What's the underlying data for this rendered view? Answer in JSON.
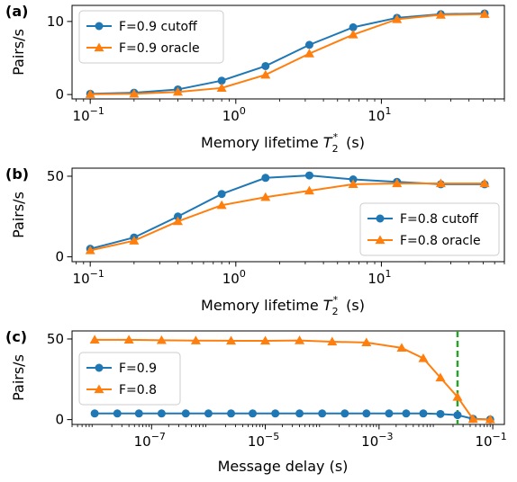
{
  "chart_data": [
    {
      "panel": "(a)",
      "type": "line",
      "xscale": "log",
      "xlabel": "Memory lifetime",
      "xlabel_math": "T2*",
      "xlabel_unit": "(s)",
      "ylabel": "Pairs/s",
      "xlim": [
        0.075,
        70
      ],
      "ylim": [
        -0.6,
        12.2
      ],
      "xticks": [
        {
          "value": 0.1,
          "label": "10",
          "exp": "−1"
        },
        {
          "value": 1,
          "label": "10",
          "exp": "0"
        },
        {
          "value": 10,
          "label": "10",
          "exp": "1"
        }
      ],
      "yticks": [
        {
          "value": 0,
          "label": "0"
        },
        {
          "value": 10,
          "label": "10"
        }
      ],
      "legend": "upper-left",
      "series": [
        {
          "name": "F=0.9 cutoff",
          "color": "#1f77b4",
          "marker": "circle",
          "x": [
            0.1,
            0.2,
            0.4,
            0.8,
            1.6,
            3.2,
            6.4,
            12.8,
            25.6,
            51.2
          ],
          "y": [
            0.1,
            0.25,
            0.7,
            1.9,
            3.9,
            6.8,
            9.2,
            10.5,
            11.0,
            11.1
          ]
        },
        {
          "name": "F=0.9 oracle",
          "color": "#ff7f0e",
          "marker": "triangle",
          "x": [
            0.1,
            0.2,
            0.4,
            0.8,
            1.6,
            3.2,
            6.4,
            12.8,
            25.6,
            51.2
          ],
          "y": [
            0.05,
            0.1,
            0.35,
            0.9,
            2.7,
            5.6,
            8.2,
            10.3,
            10.9,
            11.0
          ]
        }
      ]
    },
    {
      "panel": "(b)",
      "type": "line",
      "xscale": "log",
      "xlabel": "Memory lifetime",
      "xlabel_math": "T2*",
      "xlabel_unit": "(s)",
      "ylabel": "Pairs/s",
      "xlim": [
        0.075,
        70
      ],
      "ylim": [
        -3,
        55
      ],
      "xticks": [
        {
          "value": 0.1,
          "label": "10",
          "exp": "−1"
        },
        {
          "value": 1,
          "label": "10",
          "exp": "0"
        },
        {
          "value": 10,
          "label": "10",
          "exp": "1"
        }
      ],
      "yticks": [
        {
          "value": 0,
          "label": "0"
        },
        {
          "value": 50,
          "label": "50"
        }
      ],
      "legend": "lower-right",
      "series": [
        {
          "name": "F=0.8 cutoff",
          "color": "#1f77b4",
          "marker": "circle",
          "x": [
            0.1,
            0.2,
            0.4,
            0.8,
            1.6,
            3.2,
            6.4,
            12.8,
            25.6,
            51.2
          ],
          "y": [
            5,
            12,
            25,
            39,
            49,
            50.5,
            48,
            46.5,
            45,
            45
          ]
        },
        {
          "name": "F=0.8 oracle",
          "color": "#ff7f0e",
          "marker": "triangle",
          "x": [
            0.1,
            0.2,
            0.4,
            0.8,
            1.6,
            3.2,
            6.4,
            12.8,
            25.6,
            51.2
          ],
          "y": [
            4,
            10,
            22,
            32,
            37,
            41,
            45,
            45.5,
            45.5,
            45.5
          ]
        }
      ]
    },
    {
      "panel": "(c)",
      "type": "line",
      "xscale": "log",
      "xlabel": "Message delay",
      "xlabel_unit": "(s)",
      "ylabel": "Pairs/s",
      "xlim": [
        4e-09,
        0.16
      ],
      "ylim": [
        -3,
        55
      ],
      "xticks": [
        {
          "value": 1e-07,
          "label": "10",
          "exp": "−7"
        },
        {
          "value": 1e-05,
          "label": "10",
          "exp": "−5"
        },
        {
          "value": 0.001,
          "label": "10",
          "exp": "−3"
        },
        {
          "value": 0.1,
          "label": "10",
          "exp": "−1"
        }
      ],
      "yticks": [
        {
          "value": 0,
          "label": "0"
        },
        {
          "value": 50,
          "label": "50"
        }
      ],
      "legend": "center-left",
      "vline": {
        "x": 0.024,
        "color": "#2ca02c",
        "style": "dashed"
      },
      "series": [
        {
          "name": "F=0.9",
          "color": "#1f77b4",
          "marker": "circle",
          "x": [
            1e-08,
            2.5e-08,
            6e-08,
            1.5e-07,
            4e-07,
            1e-06,
            2.5e-06,
            6e-06,
            1.5e-05,
            4e-05,
            0.0001,
            0.00025,
            0.0006,
            0.0015,
            0.003,
            0.006,
            0.012,
            0.024,
            0.045,
            0.09
          ],
          "y": [
            3.8,
            3.8,
            3.8,
            3.8,
            3.8,
            3.8,
            3.8,
            3.8,
            3.8,
            3.8,
            3.8,
            3.8,
            3.8,
            3.8,
            3.8,
            3.8,
            3.5,
            2.8,
            0.5,
            0.1
          ]
        },
        {
          "name": "F=0.8",
          "color": "#ff7f0e",
          "marker": "triangle",
          "x": [
            1e-08,
            4e-08,
            1.5e-07,
            6e-07,
            2.5e-06,
            1e-05,
            4e-05,
            0.00015,
            0.0006,
            0.0025,
            0.006,
            0.012,
            0.024,
            0.045,
            0.09
          ],
          "y": [
            49.5,
            49.5,
            49.2,
            49.0,
            48.9,
            48.9,
            49.1,
            48.3,
            47.8,
            44.5,
            38,
            26,
            14,
            0.3,
            0.1
          ]
        }
      ]
    }
  ]
}
